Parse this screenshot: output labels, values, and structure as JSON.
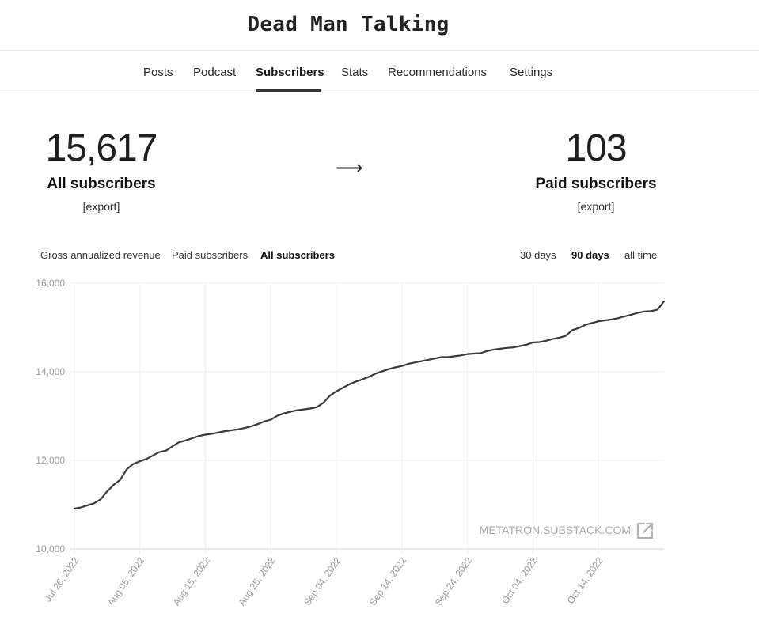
{
  "site": {
    "title": "Dead Man Talking"
  },
  "nav": {
    "items": [
      {
        "label": "Posts",
        "active": false
      },
      {
        "label": "Podcast",
        "active": false
      },
      {
        "label": "Subscribers",
        "active": true
      },
      {
        "label": "Stats",
        "active": false
      },
      {
        "label": "Recommendations",
        "active": false
      },
      {
        "label": "Settings",
        "active": false
      }
    ]
  },
  "summary": {
    "all": {
      "value": "15,617",
      "label": "All subscribers",
      "export": "[export]"
    },
    "arrow": "⟶",
    "paid": {
      "value": "103",
      "label": "Paid subscribers",
      "export": "[export]"
    }
  },
  "metric_tabs": [
    {
      "label": "Gross annualized revenue",
      "active": false
    },
    {
      "label": "Paid subscribers",
      "active": false
    },
    {
      "label": "All subscribers",
      "active": true
    }
  ],
  "range_tabs": [
    {
      "label": "30 days",
      "active": false
    },
    {
      "label": "90 days",
      "active": true
    },
    {
      "label": "all time",
      "active": false
    }
  ],
  "watermark": "METATRON.SUBSTACK.COM",
  "colors": {
    "line": "#3a3a3a",
    "grid": "#eeeeee",
    "axis_text": "#999999"
  },
  "chart_data": {
    "type": "line",
    "title": "",
    "xlabel": "",
    "ylabel": "",
    "ylim": [
      10000,
      16000
    ],
    "yticks": [
      "10,000",
      "12,000",
      "14,000",
      "16,000"
    ],
    "yticks_values": [
      10000,
      12000,
      14000,
      16000
    ],
    "xticks": [
      "Jul 26, 2022",
      "Aug 05, 2022",
      "Aug 15, 2022",
      "Aug 25, 2022",
      "Sep 04, 2022",
      "Sep 14, 2022",
      "Sep 24, 2022",
      "Oct 04, 2022",
      "Oct 14, 2022"
    ],
    "x_start": "Jul 26, 2022",
    "x_end": "Oct 24, 2022",
    "series": [
      {
        "values": [
          10910,
          10940,
          10985,
          11030,
          11120,
          11300,
          11450,
          11560,
          11800,
          11920,
          11980,
          12030,
          12110,
          12190,
          12220,
          12320,
          12410,
          12450,
          12500,
          12550,
          12580,
          12600,
          12630,
          12660,
          12680,
          12700,
          12730,
          12770,
          12820,
          12880,
          12920,
          13010,
          13060,
          13100,
          13130,
          13150,
          13170,
          13200,
          13300,
          13460,
          13560,
          13640,
          13720,
          13780,
          13830,
          13890,
          13960,
          14010,
          14060,
          14100,
          14130,
          14180,
          14210,
          14240,
          14270,
          14300,
          14330,
          14330,
          14350,
          14370,
          14400,
          14410,
          14420,
          14470,
          14500,
          14520,
          14540,
          14550,
          14580,
          14610,
          14660,
          14670,
          14700,
          14740,
          14770,
          14810,
          14940,
          14990,
          15060,
          15100,
          15140,
          15160,
          15180,
          15210,
          15250,
          15290,
          15330,
          15360,
          15370,
          15400,
          15590
        ]
      }
    ]
  }
}
